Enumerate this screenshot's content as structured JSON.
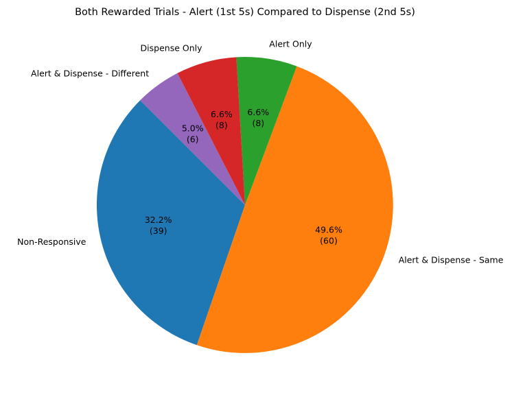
{
  "chart_data": {
    "type": "pie",
    "title": "Both Rewarded Trials - Alert (1st 5s) Compared to Dispense (2nd 5s)",
    "start_angle_deg": 135,
    "direction": "counterclockwise",
    "slices": [
      {
        "label": "Non-Responsive",
        "value": 39,
        "percent_label": "32.2%",
        "count_label": "(39)",
        "color": "#1f77b4"
      },
      {
        "label": "Alert & Dispense - Same",
        "value": 60,
        "percent_label": "49.6%",
        "count_label": "(60)",
        "color": "#ff7f0e"
      },
      {
        "label": "Alert Only",
        "value": 8,
        "percent_label": "6.6%",
        "count_label": "(8)",
        "color": "#2ca02c"
      },
      {
        "label": "Dispense Only",
        "value": 8,
        "percent_label": "6.6%",
        "count_label": "(8)",
        "color": "#d62728"
      },
      {
        "label": "Alert & Dispense - Different",
        "value": 6,
        "percent_label": "5.0%",
        "count_label": "(6)",
        "color": "#9467bd"
      }
    ]
  }
}
